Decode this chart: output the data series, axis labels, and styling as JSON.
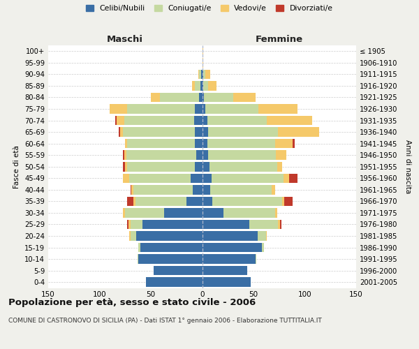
{
  "age_groups": [
    "0-4",
    "5-9",
    "10-14",
    "15-19",
    "20-24",
    "25-29",
    "30-34",
    "35-39",
    "40-44",
    "45-49",
    "50-54",
    "55-59",
    "60-64",
    "65-69",
    "70-74",
    "75-79",
    "80-84",
    "85-89",
    "90-94",
    "95-99",
    "100+"
  ],
  "birth_years": [
    "2001-2005",
    "1996-2000",
    "1991-1995",
    "1986-1990",
    "1981-1985",
    "1976-1980",
    "1971-1975",
    "1966-1970",
    "1961-1965",
    "1956-1960",
    "1951-1955",
    "1946-1950",
    "1941-1945",
    "1936-1940",
    "1931-1935",
    "1926-1930",
    "1921-1925",
    "1916-1920",
    "1911-1915",
    "1906-1910",
    "≤ 1905"
  ],
  "maschi": {
    "celibi": [
      55,
      47,
      62,
      60,
      64,
      58,
      37,
      15,
      9,
      11,
      7,
      6,
      7,
      7,
      8,
      7,
      3,
      2,
      1,
      0,
      0
    ],
    "coniugati": [
      0,
      0,
      1,
      2,
      6,
      12,
      38,
      50,
      58,
      60,
      66,
      68,
      66,
      70,
      68,
      66,
      38,
      5,
      2,
      0,
      0
    ],
    "vedovi": [
      0,
      0,
      0,
      0,
      1,
      2,
      2,
      2,
      2,
      6,
      2,
      2,
      2,
      3,
      7,
      17,
      9,
      3,
      1,
      0,
      0
    ],
    "divorziati": [
      0,
      0,
      0,
      0,
      0,
      1,
      0,
      6,
      1,
      0,
      2,
      1,
      0,
      1,
      2,
      0,
      0,
      0,
      0,
      0,
      0
    ]
  },
  "femmine": {
    "nubili": [
      47,
      44,
      52,
      58,
      54,
      46,
      21,
      10,
      8,
      9,
      7,
      6,
      5,
      6,
      5,
      3,
      2,
      1,
      1,
      0,
      0
    ],
    "coniugate": [
      0,
      0,
      1,
      2,
      8,
      28,
      50,
      68,
      60,
      70,
      66,
      66,
      66,
      68,
      58,
      52,
      28,
      5,
      2,
      0,
      0
    ],
    "vedove": [
      0,
      0,
      0,
      0,
      1,
      2,
      2,
      2,
      3,
      6,
      5,
      10,
      17,
      40,
      44,
      38,
      22,
      8,
      5,
      1,
      1
    ],
    "divorziate": [
      0,
      0,
      0,
      0,
      0,
      1,
      0,
      8,
      0,
      8,
      0,
      0,
      2,
      0,
      0,
      0,
      0,
      0,
      0,
      0,
      0
    ]
  },
  "colors": {
    "celibe": "#3a6ea5",
    "coniugato": "#c5d9a0",
    "vedovo": "#f5c96a",
    "divorziato": "#c0392b"
  },
  "xlim": 150,
  "title": "Popolazione per età, sesso e stato civile - 2006",
  "subtitle": "COMUNE DI CASTRONOVO DI SICILIA (PA) - Dati ISTAT 1° gennaio 2006 - Elaborazione TUTTITALIA.IT",
  "xlabel_left": "Maschi",
  "xlabel_right": "Femmine",
  "ylabel_left": "Fasce di età",
  "ylabel_right": "Anni di nascita",
  "bg_color": "#f0f0eb",
  "plot_bg": "#ffffff",
  "legend_labels": [
    "Celibi/Nubili",
    "Coniugati/e",
    "Vedovi/e",
    "Divorziati/e"
  ]
}
